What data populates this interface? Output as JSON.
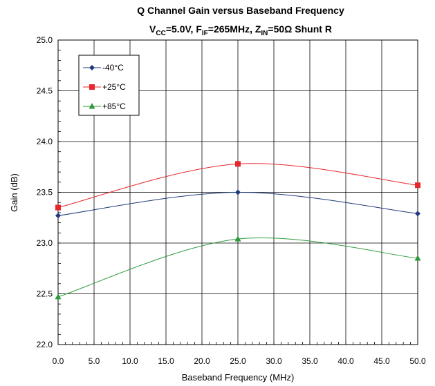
{
  "chart_data": {
    "type": "line",
    "title_line1": "Q Channel Gain versus Baseband Frequency",
    "title_line2": {
      "p1": "V",
      "s1": "CC",
      "p2": "=5.0V, F",
      "s2": "IF",
      "p3": "=265MHz, Z",
      "s3": "IN",
      "p4": "=50Ω Shunt R"
    },
    "xlabel": "Baseband Frequency (MHz)",
    "ylabel": "Gain (dB)",
    "xlim": [
      0,
      50
    ],
    "ylim": [
      22.0,
      25.0
    ],
    "x_ticks": [
      "0.0",
      "5.0",
      "10.0",
      "15.0",
      "20.0",
      "25.0",
      "30.0",
      "35.0",
      "40.0",
      "45.0",
      "50.0"
    ],
    "y_ticks": [
      "22.0",
      "22.5",
      "23.0",
      "23.5",
      "24.0",
      "24.5",
      "25.0"
    ],
    "grid": true,
    "legend_position": "top-left",
    "series": [
      {
        "name": "-40°C",
        "color": "#1f3a7a",
        "marker": "diamond",
        "x": [
          0,
          25,
          50
        ],
        "values": [
          23.27,
          23.5,
          23.29
        ]
      },
      {
        "name": "+25°C",
        "color": "#e8272b",
        "marker": "square",
        "x": [
          0,
          25,
          50
        ],
        "values": [
          23.35,
          23.78,
          23.57
        ]
      },
      {
        "name": "+85°C",
        "color": "#2e9a3c",
        "marker": "triangle",
        "x": [
          0,
          25,
          50
        ],
        "values": [
          22.47,
          23.04,
          22.85
        ]
      }
    ]
  }
}
